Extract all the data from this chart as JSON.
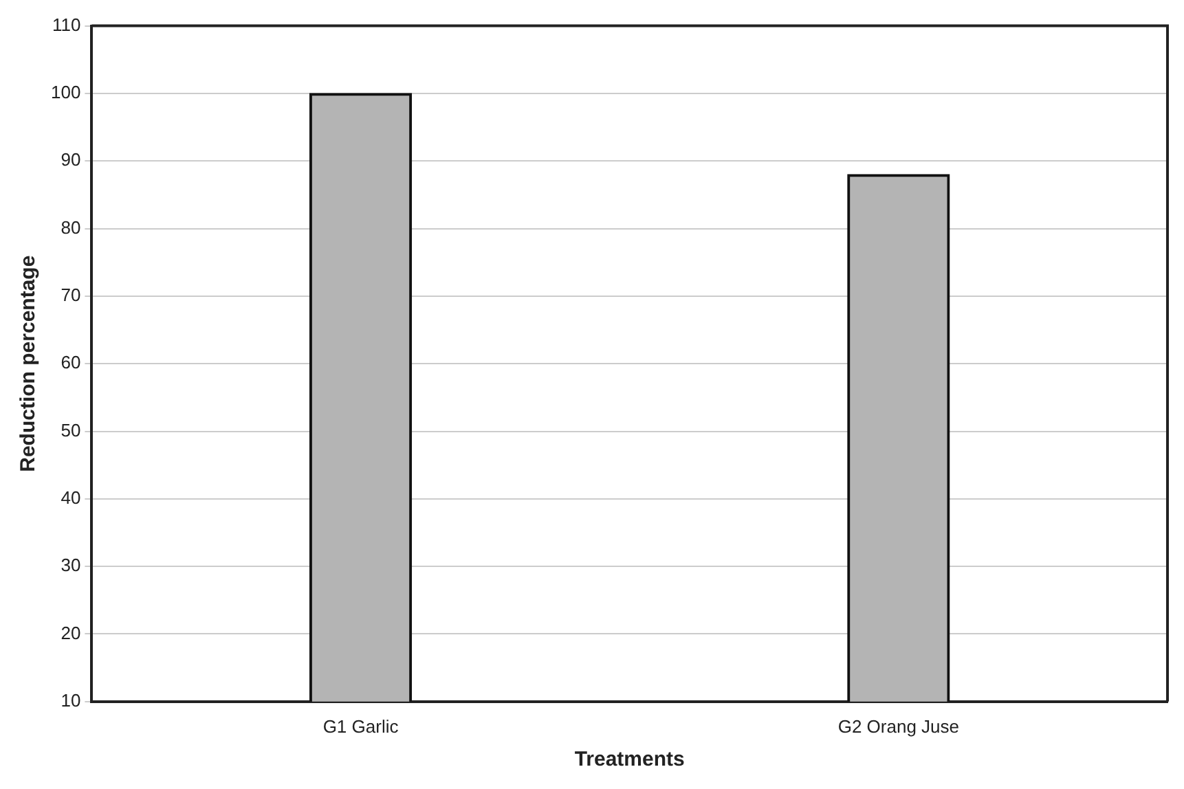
{
  "chart_data": {
    "type": "bar",
    "xlabel": "Treatments",
    "ylabel": "Reduction percentage",
    "categories": [
      "G1 Garlic",
      "G2 Orang Juse"
    ],
    "values": [
      100,
      88
    ],
    "color": "#b4b4b4",
    "ylim": [
      10,
      110
    ],
    "yticks": [
      10,
      20,
      30,
      40,
      50,
      60,
      70,
      80,
      90,
      100,
      110
    ],
    "grid": "y"
  }
}
